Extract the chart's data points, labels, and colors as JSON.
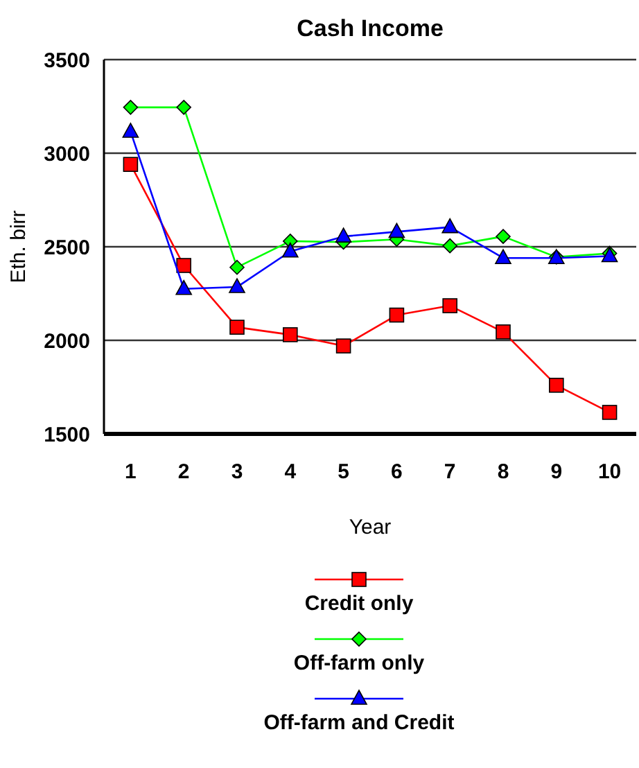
{
  "chart_data": {
    "type": "line",
    "title": "Cash Income",
    "xlabel": "Year",
    "ylabel": "Eth. birr",
    "categories": [
      "1",
      "2",
      "3",
      "4",
      "5",
      "6",
      "7",
      "8",
      "9",
      "10"
    ],
    "ylim": [
      1500,
      3500
    ],
    "yticks": [
      1500,
      2000,
      2500,
      3000,
      3500
    ],
    "grid": "y",
    "legend": "bottom",
    "series": [
      {
        "name": "Credit only",
        "color": "#ff0000",
        "marker": "square",
        "values": [
          2940,
          2400,
          2070,
          2030,
          1970,
          2135,
          2185,
          2045,
          1760,
          1615
        ]
      },
      {
        "name": "Off-farm only",
        "color": "#00ff00",
        "marker": "diamond",
        "values": [
          3245,
          3245,
          2390,
          2530,
          2525,
          2540,
          2505,
          2555,
          2445,
          2465
        ]
      },
      {
        "name": "Off-farm and Credit",
        "color": "#0000ff",
        "marker": "triangle",
        "values": [
          3115,
          2275,
          2285,
          2475,
          2555,
          2580,
          2605,
          2440,
          2440,
          2450
        ]
      }
    ]
  }
}
